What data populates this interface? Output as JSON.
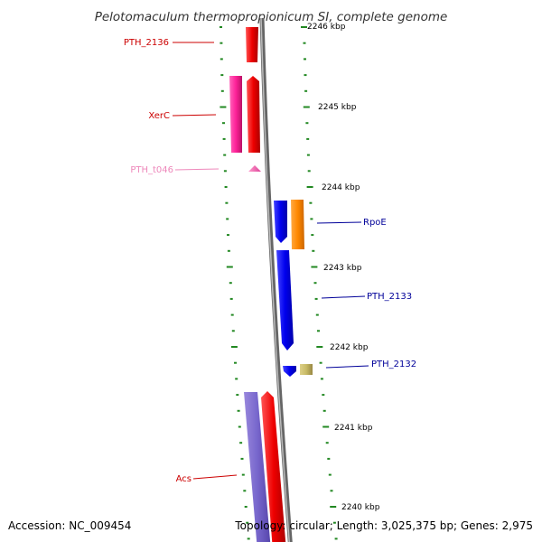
{
  "title": "Pelotomaculum thermopropionicum SI, complete genome",
  "footer": {
    "accession": "Accession: NC_009454",
    "summary": "Topology: circular; Length: 3,025,375 bp; Genes: 2,975"
  },
  "kbp_labels": [
    "2246 kbp",
    "2245 kbp",
    "2244 kbp",
    "2243 kbp",
    "2242 kbp",
    "2241 kbp",
    "2240 kbp"
  ],
  "gene_labels": [
    {
      "text": "PTH_2136",
      "color": "#cc0000"
    },
    {
      "text": "XerC",
      "color": "#cc0000"
    },
    {
      "text": "PTH_t046",
      "color": "#ee88bb"
    },
    {
      "text": "RpoE",
      "color": "#000099"
    },
    {
      "text": "PTH_2133",
      "color": "#000099"
    },
    {
      "text": "PTH_2132",
      "color": "#000099"
    },
    {
      "text": "Acs",
      "color": "#cc0000"
    }
  ],
  "colors": {
    "red": "#ee0000",
    "magenta": "#ff2299",
    "pink": "#ee66aa",
    "blue": "#0000ee",
    "orange": "#ff8800",
    "khaki": "#c8bb66",
    "lavender": "#7766cc",
    "backbone": "#888888",
    "ticks": "#228822"
  }
}
